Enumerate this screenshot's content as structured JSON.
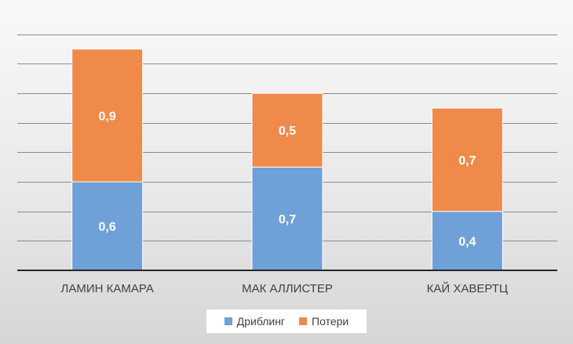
{
  "chart_data": {
    "type": "bar",
    "stacked": true,
    "categories": [
      "ЛАМИН КАМАРА",
      "МАК АЛЛИСТЕР",
      "КАЙ ХАВЕРТЦ"
    ],
    "series": [
      {
        "name": "Дриблинг",
        "values": [
          0.6,
          0.7,
          0.4
        ],
        "color": "#6fa0d8"
      },
      {
        "name": "Потери",
        "values": [
          0.9,
          0.5,
          0.7
        ],
        "color": "#ef8a4b"
      }
    ],
    "data_labels": [
      [
        "0,6",
        "0,7",
        "0,4"
      ],
      [
        "0,9",
        "0,5",
        "0,7"
      ]
    ],
    "ylim": [
      0,
      1.7
    ],
    "grid": true,
    "legend_position": "bottom"
  },
  "colors": {
    "axis": "#262626",
    "grid": "#8a8a8a"
  }
}
